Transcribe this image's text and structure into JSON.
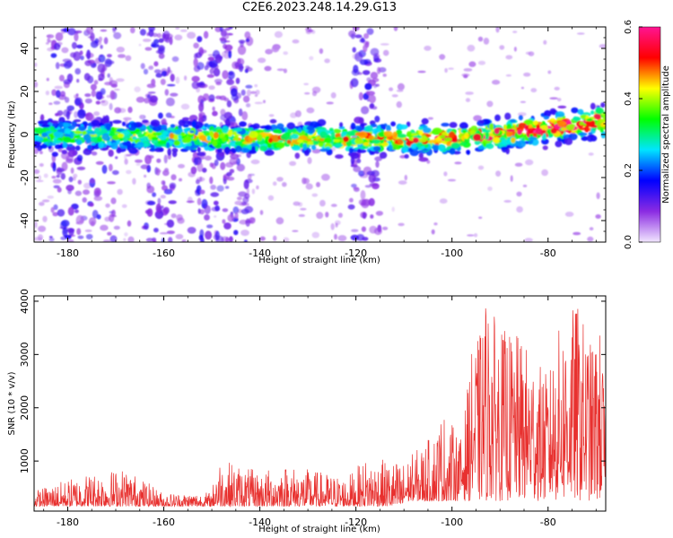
{
  "title": "C2E6.2023.248.14.29.G13",
  "chart_data": [
    {
      "type": "heatmap",
      "xlabel": "Height of straight line (km)",
      "ylabel": "Frequency (Hz)",
      "xlim": [
        -187,
        -68
      ],
      "ylim": [
        -50,
        50
      ],
      "x_ticks": [
        -180,
        -160,
        -140,
        -120,
        -100,
        -80
      ],
      "y_ticks": [
        -40,
        -20,
        0,
        20,
        40
      ],
      "colorbar": {
        "label": "Normalized spectral amplitude",
        "range": [
          0.0,
          0.6
        ],
        "ticks": [
          0.0,
          0.2,
          0.4,
          0.6
        ],
        "colors": [
          "#f2e6ff",
          "#8b2be2",
          "#0000ff",
          "#00e5ff",
          "#00ff00",
          "#ffff00",
          "#ff0000",
          "#ff1493"
        ]
      },
      "ridge": {
        "description_points": [
          [
            -185,
            0
          ],
          [
            -160,
            -1
          ],
          [
            -140,
            -2
          ],
          [
            -120,
            -2
          ],
          [
            -100,
            -2
          ],
          [
            -90,
            0
          ],
          [
            -80,
            3
          ],
          [
            -70,
            6
          ]
        ],
        "peak_amplitude": 0.6
      },
      "vertical_streaks_km": [
        -180,
        -173,
        -161,
        -151,
        -145,
        -118
      ]
    },
    {
      "type": "line",
      "xlabel": "Height of straight line (km)",
      "ylabel": "SNR (10 * v/v)",
      "xlim": [
        -187,
        -68
      ],
      "ylim": [
        60,
        4100
      ],
      "x_ticks": [
        -180,
        -160,
        -140,
        -120,
        -100,
        -80
      ],
      "y_ticks": [
        1000,
        2000,
        3000,
        4000
      ],
      "color": "#e8312f",
      "envelope_points": [
        [
          -187,
          450
        ],
        [
          -176,
          780
        ],
        [
          -168,
          880
        ],
        [
          -160,
          400
        ],
        [
          -150,
          420
        ],
        [
          -149,
          1080
        ],
        [
          -140,
          800
        ],
        [
          -135,
          950
        ],
        [
          -122,
          700
        ],
        [
          -118,
          1050
        ],
        [
          -110,
          1000
        ],
        [
          -104,
          1500
        ],
        [
          -102,
          2000
        ],
        [
          -98,
          1400
        ],
        [
          -96,
          3000
        ],
        [
          -94,
          3450
        ],
        [
          -93,
          4080
        ],
        [
          -90,
          3500
        ],
        [
          -86,
          3350
        ],
        [
          -80,
          2600
        ],
        [
          -78,
          3450
        ],
        [
          -74,
          4000
        ],
        [
          -71,
          3200
        ],
        [
          -69,
          3500
        ],
        [
          -68,
          2000
        ]
      ]
    }
  ]
}
